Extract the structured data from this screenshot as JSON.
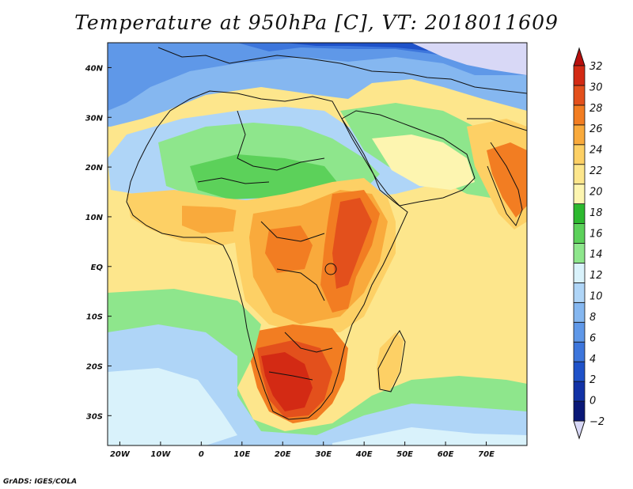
{
  "title": "Temperature at 950hPa [C], VT: 2018011609",
  "credit": "GrADS: IGES/COLA",
  "map": {
    "lon_range": [
      -23,
      80
    ],
    "lat_range": [
      -36,
      45
    ],
    "x_ticks": [
      {
        "lon": -20,
        "label": "20W"
      },
      {
        "lon": -10,
        "label": "10W"
      },
      {
        "lon": 0,
        "label": "0"
      },
      {
        "lon": 10,
        "label": "10E"
      },
      {
        "lon": 20,
        "label": "20E"
      },
      {
        "lon": 30,
        "label": "30E"
      },
      {
        "lon": 40,
        "label": "40E"
      },
      {
        "lon": 50,
        "label": "50E"
      },
      {
        "lon": 60,
        "label": "60E"
      },
      {
        "lon": 70,
        "label": "70E"
      }
    ],
    "y_ticks": [
      {
        "lat": 40,
        "label": "40N"
      },
      {
        "lat": 30,
        "label": "30N"
      },
      {
        "lat": 20,
        "label": "20N"
      },
      {
        "lat": 10,
        "label": "10N"
      },
      {
        "lat": 0,
        "label": "EQ"
      },
      {
        "lat": -10,
        "label": "10S"
      },
      {
        "lat": -20,
        "label": "20S"
      },
      {
        "lat": -30,
        "label": "30S"
      }
    ]
  },
  "colorbar": {
    "levels": [
      "32",
      "30",
      "28",
      "26",
      "24",
      "22",
      "20",
      "18",
      "16",
      "14",
      "12",
      "10",
      "8",
      "6",
      "4",
      "2",
      "0",
      "−2"
    ],
    "colors": [
      "#d8d8f6",
      "#0a1877",
      "#1232a6",
      "#1f52c9",
      "#3d76dc",
      "#5f98e8",
      "#85b7f0",
      "#afd5f7",
      "#d9f2fb",
      "#8ee68c",
      "#5cd15a",
      "#2db92f",
      "#fdf5b0",
      "#fde68c",
      "#fdd065",
      "#f9aa3c",
      "#f27d22",
      "#e3501c",
      "#d32a14",
      "#b80f0d"
    ]
  },
  "field_legend": {
    "icecap": "#d8d8f6",
    "t_m2": "#0a1877",
    "t0": "#1232a6",
    "t2": "#1f52c9",
    "t4": "#3d76dc",
    "t6": "#5f98e8",
    "t8": "#85b7f0",
    "t10": "#afd5f7",
    "t12": "#d9f2fb",
    "t14": "#8ee68c",
    "t16": "#5cd15a",
    "t18": "#2db92f",
    "t20": "#fdf5b0",
    "t22": "#fde68c",
    "t24": "#fdd065",
    "t26": "#f9aa3c",
    "t28": "#f27d22",
    "t30": "#e3501c",
    "t32": "#d32a14"
  }
}
